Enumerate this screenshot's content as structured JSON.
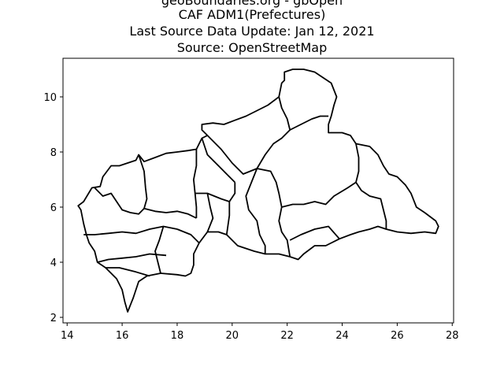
{
  "title_lines": [
    "geoBoundaries.org - gbOpen",
    "CAF ADM1(Prefectures)",
    "Last Source Data Update: Jan 12, 2021",
    "Source: OpenStreetMap"
  ],
  "chart_data": {
    "type": "map",
    "xlim": [
      13.85,
      28.05
    ],
    "ylim": [
      1.8,
      11.4
    ],
    "x_ticks": [
      14,
      16,
      18,
      20,
      22,
      24,
      26,
      28
    ],
    "y_ticks": [
      2,
      4,
      6,
      8,
      10
    ],
    "x_tick_labels": [
      "14",
      "16",
      "18",
      "20",
      "22",
      "24",
      "26",
      "28"
    ],
    "y_tick_labels": [
      "2",
      "4",
      "6",
      "8",
      "10"
    ],
    "grid": false,
    "boundary_color": "#000000",
    "outline": [
      [
        14.4,
        6.05
      ],
      [
        14.6,
        6.2
      ],
      [
        14.9,
        6.7
      ],
      [
        15.2,
        6.75
      ],
      [
        15.3,
        7.1
      ],
      [
        15.6,
        7.5
      ],
      [
        15.9,
        7.5
      ],
      [
        16.2,
        7.6
      ],
      [
        16.5,
        7.7
      ],
      [
        16.6,
        7.9
      ],
      [
        16.8,
        7.65
      ],
      [
        17.2,
        7.8
      ],
      [
        17.6,
        7.95
      ],
      [
        18.0,
        8.0
      ],
      [
        18.4,
        8.05
      ],
      [
        18.7,
        8.1
      ],
      [
        18.9,
        8.5
      ],
      [
        19.1,
        8.6
      ],
      [
        18.9,
        8.8
      ],
      [
        18.9,
        9.0
      ],
      [
        19.3,
        9.05
      ],
      [
        19.7,
        9.0
      ],
      [
        20.1,
        9.15
      ],
      [
        20.5,
        9.3
      ],
      [
        20.9,
        9.5
      ],
      [
        21.3,
        9.7
      ],
      [
        21.7,
        10.0
      ],
      [
        21.8,
        10.5
      ],
      [
        21.9,
        10.6
      ],
      [
        21.9,
        10.9
      ],
      [
        22.2,
        11.0
      ],
      [
        22.6,
        11.0
      ],
      [
        23.0,
        10.9
      ],
      [
        23.3,
        10.7
      ],
      [
        23.6,
        10.5
      ],
      [
        23.8,
        10.0
      ],
      [
        23.7,
        9.7
      ],
      [
        23.6,
        9.3
      ],
      [
        23.5,
        9.0
      ],
      [
        23.5,
        8.7
      ],
      [
        24.0,
        8.7
      ],
      [
        24.3,
        8.6
      ],
      [
        24.5,
        8.3
      ],
      [
        25.0,
        8.2
      ],
      [
        25.3,
        7.9
      ],
      [
        25.5,
        7.5
      ],
      [
        25.7,
        7.2
      ],
      [
        26.0,
        7.1
      ],
      [
        26.3,
        6.8
      ],
      [
        26.5,
        6.5
      ],
      [
        26.7,
        6.0
      ],
      [
        27.0,
        5.8
      ],
      [
        27.4,
        5.5
      ],
      [
        27.5,
        5.3
      ],
      [
        27.4,
        5.05
      ],
      [
        27.0,
        5.1
      ],
      [
        26.5,
        5.05
      ],
      [
        26.0,
        5.1
      ],
      [
        25.6,
        5.2
      ],
      [
        25.3,
        5.3
      ],
      [
        25.0,
        5.2
      ],
      [
        24.6,
        5.1
      ],
      [
        24.3,
        5.0
      ],
      [
        23.9,
        4.85
      ],
      [
        23.4,
        4.6
      ],
      [
        23.0,
        4.6
      ],
      [
        22.6,
        4.3
      ],
      [
        22.4,
        4.1
      ],
      [
        22.1,
        4.2
      ],
      [
        21.7,
        4.3
      ],
      [
        21.2,
        4.3
      ],
      [
        20.8,
        4.4
      ],
      [
        20.5,
        4.5
      ],
      [
        20.2,
        4.6
      ],
      [
        19.8,
        5.0
      ],
      [
        19.5,
        5.1
      ],
      [
        19.1,
        5.1
      ],
      [
        18.8,
        4.7
      ],
      [
        18.6,
        4.3
      ],
      [
        18.6,
        3.9
      ],
      [
        18.5,
        3.6
      ],
      [
        18.3,
        3.5
      ],
      [
        18.0,
        3.55
      ],
      [
        17.4,
        3.6
      ],
      [
        16.9,
        3.5
      ],
      [
        16.6,
        3.3
      ],
      [
        16.4,
        2.7
      ],
      [
        16.2,
        2.2
      ],
      [
        16.1,
        2.55
      ],
      [
        16.0,
        3.0
      ],
      [
        15.8,
        3.4
      ],
      [
        15.4,
        3.8
      ],
      [
        15.1,
        4.0
      ],
      [
        15.0,
        4.4
      ],
      [
        14.8,
        4.7
      ],
      [
        14.7,
        5.0
      ],
      [
        14.6,
        5.4
      ],
      [
        14.5,
        5.9
      ],
      [
        14.4,
        6.05
      ]
    ],
    "internal_boundaries": [
      [
        [
          14.6,
          5.0
        ],
        [
          15.0,
          5.0
        ],
        [
          15.5,
          5.05
        ],
        [
          16.0,
          5.1
        ],
        [
          16.5,
          5.05
        ],
        [
          17.0,
          5.2
        ],
        [
          17.5,
          5.3
        ],
        [
          18.0,
          5.2
        ]
      ],
      [
        [
          15.1,
          4.0
        ],
        [
          15.5,
          4.1
        ],
        [
          16.0,
          4.15
        ],
        [
          16.5,
          4.2
        ],
        [
          17.0,
          4.3
        ],
        [
          17.6,
          4.25
        ]
      ],
      [
        [
          15.4,
          3.8
        ],
        [
          15.9,
          3.8
        ],
        [
          16.5,
          3.65
        ],
        [
          17.0,
          3.5
        ]
      ],
      [
        [
          17.5,
          5.3
        ],
        [
          17.35,
          4.8
        ],
        [
          17.2,
          4.4
        ],
        [
          17.3,
          4.0
        ],
        [
          17.4,
          3.6
        ]
      ],
      [
        [
          18.0,
          5.2
        ],
        [
          18.5,
          5.0
        ],
        [
          18.8,
          4.7
        ]
      ],
      [
        [
          15.0,
          6.7
        ],
        [
          15.3,
          6.4
        ],
        [
          15.6,
          6.5
        ],
        [
          15.8,
          6.2
        ],
        [
          16.0,
          5.9
        ],
        [
          16.3,
          5.8
        ],
        [
          16.6,
          5.75
        ],
        [
          16.8,
          5.95
        ]
      ],
      [
        [
          16.8,
          5.95
        ],
        [
          17.2,
          5.85
        ],
        [
          17.6,
          5.8
        ],
        [
          18.0,
          5.85
        ],
        [
          18.4,
          5.75
        ],
        [
          18.7,
          5.6
        ]
      ],
      [
        [
          16.6,
          7.9
        ],
        [
          16.8,
          7.3
        ],
        [
          16.85,
          6.7
        ],
        [
          16.9,
          6.3
        ],
        [
          16.8,
          5.95
        ]
      ],
      [
        [
          18.7,
          8.1
        ],
        [
          18.7,
          7.5
        ],
        [
          18.6,
          7.0
        ],
        [
          18.65,
          6.5
        ],
        [
          18.7,
          6.0
        ],
        [
          18.7,
          5.6
        ]
      ],
      [
        [
          18.9,
          8.5
        ],
        [
          19.1,
          7.9
        ],
        [
          19.5,
          7.5
        ],
        [
          19.8,
          7.2
        ],
        [
          20.1,
          6.9
        ]
      ],
      [
        [
          18.65,
          6.5
        ],
        [
          19.1,
          6.5
        ],
        [
          19.6,
          6.3
        ],
        [
          19.9,
          6.2
        ],
        [
          20.1,
          6.5
        ],
        [
          20.1,
          6.9
        ]
      ],
      [
        [
          19.1,
          6.5
        ],
        [
          19.2,
          6.0
        ],
        [
          19.3,
          5.6
        ],
        [
          19.1,
          5.1
        ]
      ],
      [
        [
          19.9,
          6.2
        ],
        [
          19.9,
          5.7
        ],
        [
          19.8,
          5.0
        ]
      ],
      [
        [
          19.1,
          8.6
        ],
        [
          19.6,
          8.1
        ],
        [
          20.0,
          7.6
        ],
        [
          20.4,
          7.2
        ],
        [
          20.9,
          7.4
        ],
        [
          21.2,
          7.9
        ],
        [
          21.5,
          8.3
        ],
        [
          21.8,
          8.5
        ],
        [
          22.1,
          8.8
        ],
        [
          22.0,
          9.2
        ],
        [
          21.8,
          9.6
        ],
        [
          21.7,
          10.0
        ]
      ],
      [
        [
          22.1,
          8.8
        ],
        [
          22.5,
          9.0
        ],
        [
          22.9,
          9.2
        ],
        [
          23.2,
          9.3
        ],
        [
          23.5,
          9.3
        ]
      ],
      [
        [
          20.9,
          7.4
        ],
        [
          21.4,
          7.3
        ],
        [
          21.6,
          6.9
        ],
        [
          21.7,
          6.5
        ],
        [
          21.8,
          6.0
        ],
        [
          21.7,
          5.5
        ],
        [
          21.8,
          5.1
        ],
        [
          22.0,
          4.8
        ],
        [
          22.1,
          4.2
        ]
      ],
      [
        [
          20.9,
          7.4
        ],
        [
          20.7,
          6.9
        ],
        [
          20.5,
          6.4
        ],
        [
          20.6,
          5.9
        ],
        [
          20.9,
          5.5
        ],
        [
          21.0,
          5.0
        ],
        [
          21.2,
          4.6
        ],
        [
          21.2,
          4.3
        ]
      ],
      [
        [
          21.8,
          6.0
        ],
        [
          22.2,
          6.1
        ],
        [
          22.6,
          6.1
        ],
        [
          23.0,
          6.2
        ],
        [
          23.4,
          6.1
        ],
        [
          23.7,
          6.4
        ],
        [
          24.2,
          6.7
        ],
        [
          24.5,
          6.9
        ]
      ],
      [
        [
          24.5,
          6.9
        ],
        [
          24.7,
          6.6
        ],
        [
          25.0,
          6.4
        ],
        [
          25.4,
          6.3
        ],
        [
          25.5,
          5.9
        ],
        [
          25.6,
          5.5
        ],
        [
          25.6,
          5.2
        ]
      ],
      [
        [
          24.5,
          8.3
        ],
        [
          24.6,
          7.8
        ],
        [
          24.6,
          7.3
        ],
        [
          24.5,
          6.9
        ]
      ],
      [
        [
          22.1,
          4.8
        ],
        [
          22.5,
          5.0
        ],
        [
          23.0,
          5.2
        ],
        [
          23.5,
          5.3
        ],
        [
          23.9,
          4.85
        ]
      ]
    ]
  }
}
